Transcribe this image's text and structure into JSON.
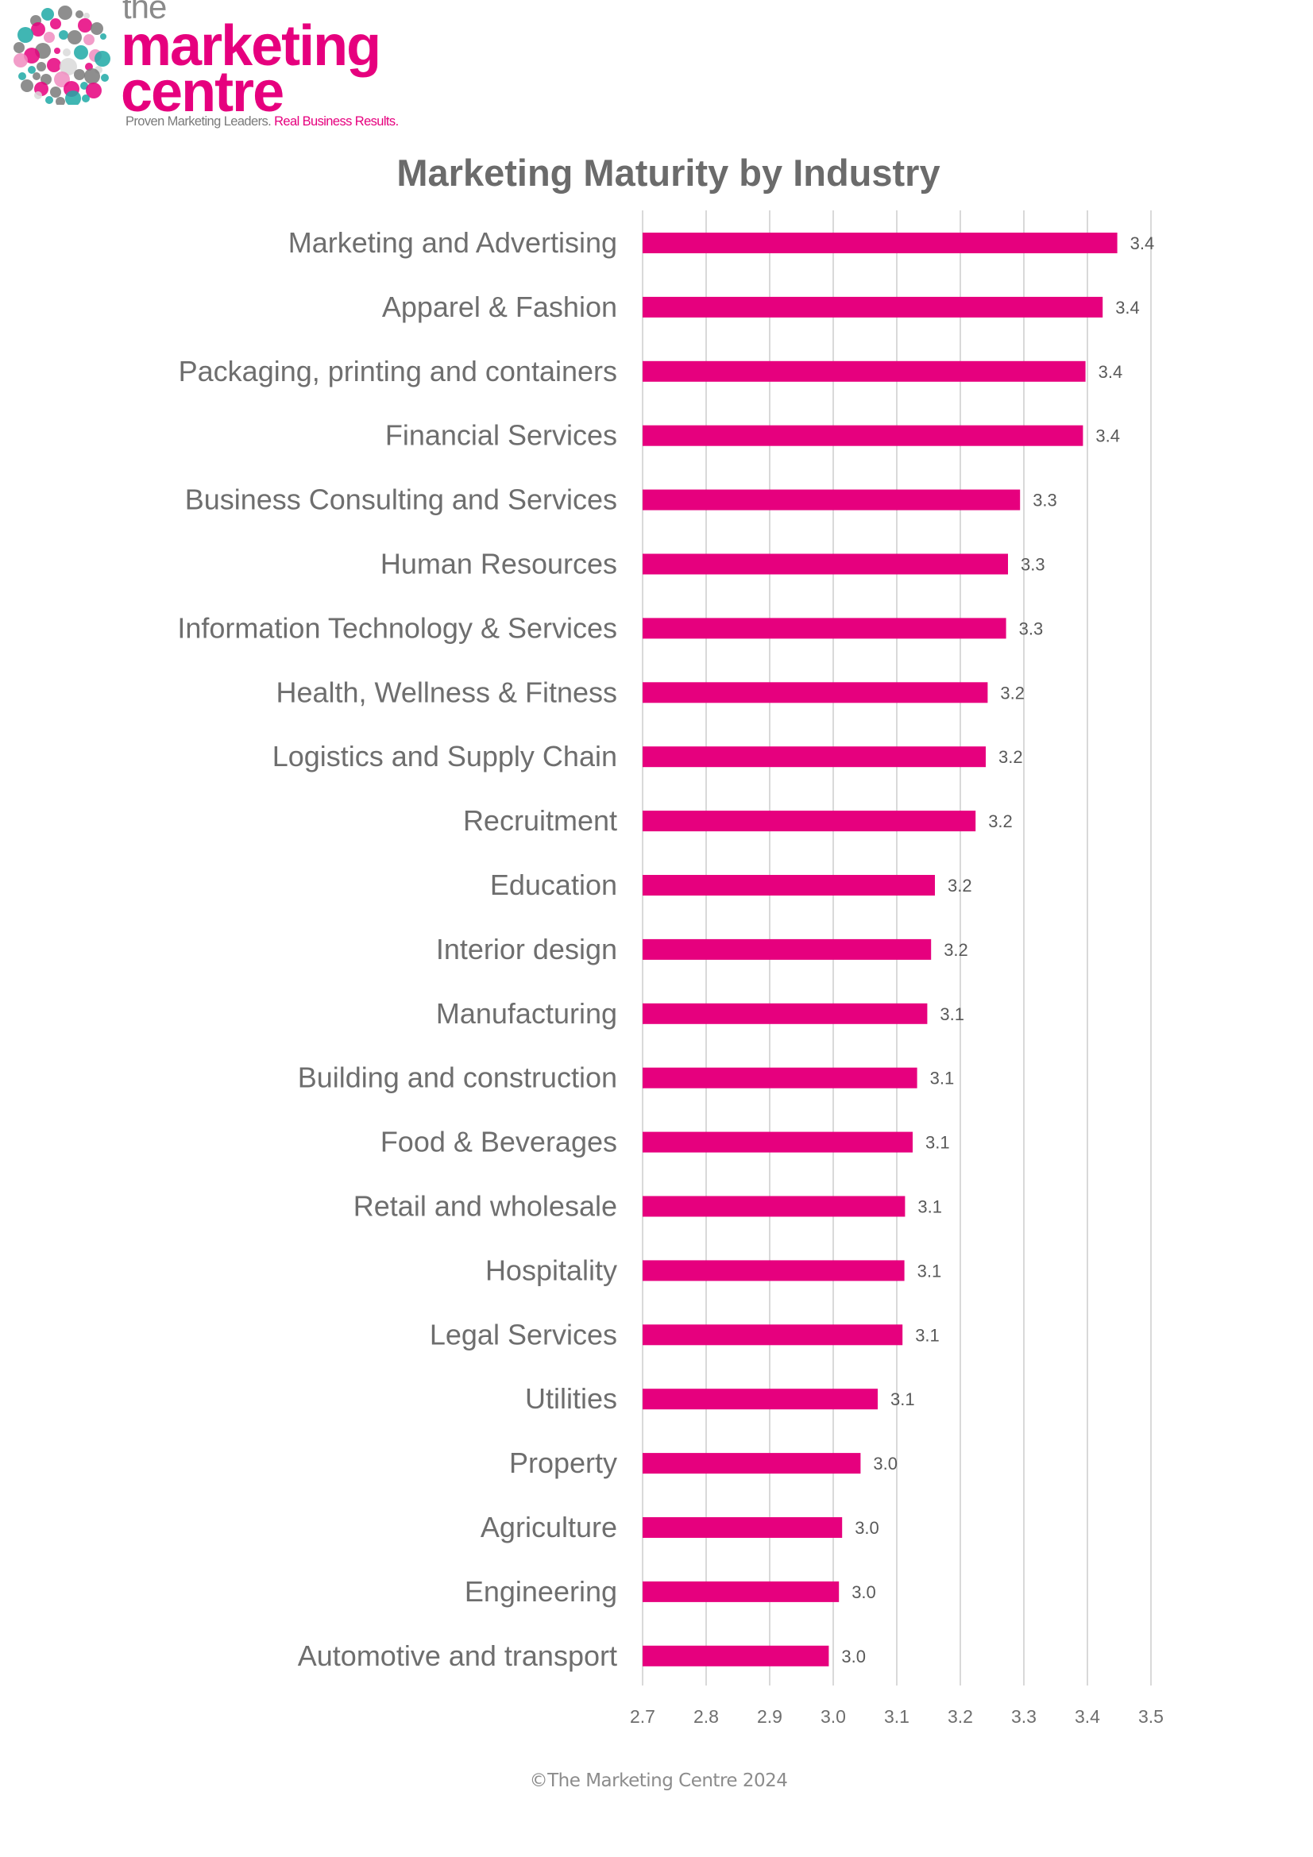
{
  "brand": {
    "logo_the": "the",
    "logo_marketing": "marketing",
    "logo_centre": "centre",
    "tagline_part1": "Proven Marketing Leaders.",
    "tagline_part2": "Real Business Results.",
    "colors": {
      "pink": "#e6007e",
      "teal": "#1fa9a6",
      "gray": "#7a7a7a",
      "light_pink": "#f08cbf",
      "light_gray": "#d9d9d9"
    }
  },
  "footer": {
    "copyright": "©The Marketing Centre 2024"
  },
  "chart_data": {
    "type": "bar",
    "orientation": "horizontal",
    "title": "Marketing Maturity by Industry",
    "xlabel": "",
    "ylabel": "",
    "xlim": [
      2.7,
      3.5
    ],
    "x_ticks": [
      "2.7",
      "2.8",
      "2.9",
      "3.0",
      "3.1",
      "3.2",
      "3.3",
      "3.4",
      "3.5"
    ],
    "grid": true,
    "legend": "none",
    "bar_color": "#e6007e",
    "categories": [
      "Marketing and Advertising",
      "Apparel & Fashion",
      "Packaging, printing and containers",
      "Financial Services",
      "Business Consulting and Services",
      "Human Resources",
      "Information Technology & Services",
      "Health, Wellness & Fitness",
      "Logistics and Supply Chain",
      "Recruitment",
      "Education",
      "Interior design",
      "Manufacturing",
      "Building and construction",
      "Food & Beverages",
      "Retail and wholesale",
      "Hospitality",
      "Legal Services",
      "Utilities",
      "Property",
      "Agriculture",
      "Engineering",
      "Automotive and transport"
    ],
    "values": [
      3.447,
      3.424,
      3.397,
      3.393,
      3.294,
      3.275,
      3.272,
      3.243,
      3.24,
      3.224,
      3.16,
      3.154,
      3.148,
      3.132,
      3.125,
      3.113,
      3.112,
      3.109,
      3.07,
      3.043,
      3.014,
      3.009,
      2.993
    ],
    "data_labels": [
      "3.4",
      "3.4",
      "3.4",
      "3.4",
      "3.3",
      "3.3",
      "3.3",
      "3.2",
      "3.2",
      "3.2",
      "3.2",
      "3.2",
      "3.1",
      "3.1",
      "3.1",
      "3.1",
      "3.1",
      "3.1",
      "3.1",
      "3.0",
      "3.0",
      "3.0",
      "3.0"
    ]
  }
}
